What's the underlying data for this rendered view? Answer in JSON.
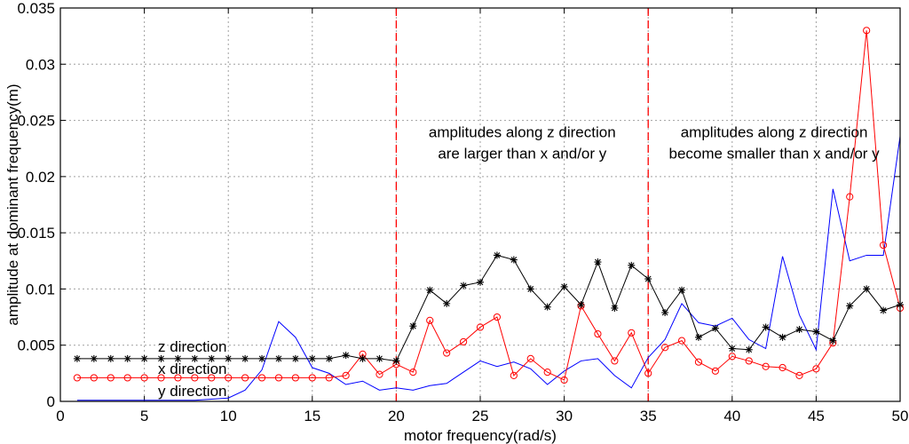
{
  "chart_data": {
    "type": "line",
    "xlabel": "motor frequency(rad/s)",
    "ylabel": "amplitude at dominant frequency(m)",
    "xlim": [
      0,
      50
    ],
    "ylim": [
      0,
      0.035
    ],
    "xticks": [
      "0",
      "5",
      "10",
      "15",
      "20",
      "25",
      "30",
      "35",
      "40",
      "45",
      "50"
    ],
    "yticks": [
      "0",
      "0.005",
      "0.01",
      "0.015",
      "0.02",
      "0.025",
      "0.03",
      "0.035"
    ],
    "grid": true,
    "x": [
      1,
      2,
      3,
      4,
      5,
      6,
      7,
      8,
      9,
      10,
      11,
      12,
      13,
      14,
      15,
      16,
      17,
      18,
      19,
      20,
      21,
      22,
      23,
      24,
      25,
      26,
      27,
      28,
      29,
      30,
      31,
      32,
      33,
      34,
      35,
      36,
      37,
      38,
      39,
      40,
      41,
      42,
      43,
      44,
      45,
      46,
      47,
      48,
      49,
      50
    ],
    "series": [
      {
        "name": "z direction",
        "color": "#000000",
        "marker": "star",
        "values": [
          0.0038,
          0.0038,
          0.0038,
          0.0038,
          0.0038,
          0.0038,
          0.0038,
          0.0038,
          0.0038,
          0.0038,
          0.0038,
          0.0038,
          0.0038,
          0.0038,
          0.0038,
          0.0038,
          0.0041,
          0.0038,
          0.0038,
          0.0036,
          0.0067,
          0.0099,
          0.0087,
          0.0103,
          0.0106,
          0.013,
          0.0126,
          0.01,
          0.0084,
          0.0102,
          0.0086,
          0.0124,
          0.0083,
          0.0121,
          0.0109,
          0.0079,
          0.0099,
          0.0057,
          0.0065,
          0.0047,
          0.0046,
          0.0066,
          0.0057,
          0.0064,
          0.0062,
          0.0054,
          0.0085,
          0.01,
          0.0081,
          0.0086
        ]
      },
      {
        "name": "x direction",
        "color": "#ff0000",
        "marker": "circle",
        "values": [
          0.0021,
          0.0021,
          0.0021,
          0.0021,
          0.0021,
          0.0021,
          0.0021,
          0.0021,
          0.0021,
          0.0021,
          0.0021,
          0.0021,
          0.0021,
          0.0021,
          0.0021,
          0.0021,
          0.0023,
          0.0042,
          0.0024,
          0.0033,
          0.0026,
          0.0072,
          0.0043,
          0.0053,
          0.0066,
          0.0075,
          0.0023,
          0.0038,
          0.0026,
          0.0019,
          0.0085,
          0.006,
          0.0036,
          0.0061,
          0.0025,
          0.0048,
          0.0054,
          0.0035,
          0.0027,
          0.004,
          0.0036,
          0.0031,
          0.003,
          0.0023,
          0.0029,
          0.0052,
          0.0182,
          0.033,
          0.0139,
          0.0083
        ]
      },
      {
        "name": "y direction",
        "color": "#0000ff",
        "marker": "none",
        "values": [
          0.0001,
          0.0001,
          0.0001,
          0.0001,
          0.0001,
          0.0001,
          0.0001,
          0.0001,
          0.0002,
          0.0003,
          0.001,
          0.0028,
          0.0071,
          0.0057,
          0.003,
          0.0025,
          0.0015,
          0.0018,
          0.001,
          0.0012,
          0.001,
          0.0014,
          0.0016,
          0.0026,
          0.0036,
          0.0031,
          0.0035,
          0.0029,
          0.0015,
          0.0027,
          0.0036,
          0.0038,
          0.0023,
          0.0012,
          0.0039,
          0.0055,
          0.0087,
          0.007,
          0.0067,
          0.0074,
          0.0055,
          0.0047,
          0.0129,
          0.0077,
          0.0046,
          0.0189,
          0.0125,
          0.013,
          0.013,
          0.0236
        ]
      }
    ],
    "vlines": [
      20,
      35
    ],
    "vline_color": "#ff0000",
    "annotations": [
      {
        "lines": [
          "amplitudes along z direction",
          "are larger than x and/or y"
        ],
        "x": 27.5,
        "y": 0.0235
      },
      {
        "lines": [
          "amplitudes along z direction",
          "become smaller than x and/or y"
        ],
        "x": 42.5,
        "y": 0.0235
      }
    ],
    "legend": {
      "placement": "bottom-left",
      "entries": [
        "z direction",
        "x direction",
        "y direction"
      ]
    }
  }
}
